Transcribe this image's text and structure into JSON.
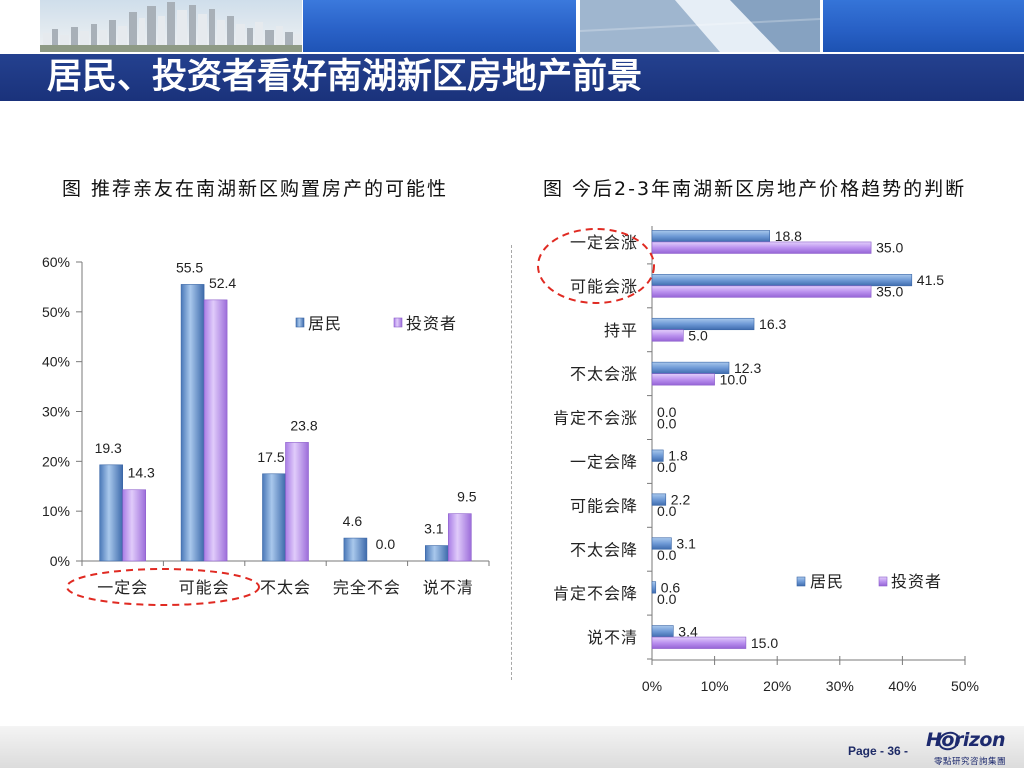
{
  "slide": {
    "title": "居民、投资者看好南湖新区房地产前景",
    "page_label": "Page - 36 -",
    "logo_text": "Horizon",
    "logo_subtext": "零點研究咨詢集團"
  },
  "colors": {
    "title_bar": "#1d3783",
    "resident": "#5b8bcd",
    "resident_edge": "#3a66a6",
    "investor": "#b48ae8",
    "investor_edge": "#8d5fcb",
    "highlight": "#e02a22"
  },
  "chart_data": [
    {
      "type": "bar",
      "orientation": "vertical",
      "title": "图 推荐亲友在南湖新区购置房产的可能性",
      "categories": [
        "一定会",
        "可能会",
        "不太会",
        "完全不会",
        "说不清"
      ],
      "series": [
        {
          "name": "居民",
          "values": [
            19.3,
            55.5,
            17.5,
            4.6,
            3.1
          ]
        },
        {
          "name": "投资者",
          "values": [
            14.3,
            52.4,
            23.8,
            0.0,
            9.5
          ]
        }
      ],
      "y_ticks": [
        "0%",
        "10%",
        "20%",
        "30%",
        "40%",
        "50%",
        "60%"
      ],
      "ylim": [
        0,
        60
      ],
      "grid": false,
      "legend": "top-right"
    },
    {
      "type": "bar",
      "orientation": "horizontal",
      "title": "图 今后2-3年南湖新区房地产价格趋势的判断",
      "categories": [
        "一定会涨",
        "可能会涨",
        "持平",
        "不太会涨",
        "肯定不会涨",
        "一定会降",
        "可能会降",
        "不太会降",
        "肯定不会降",
        "说不清"
      ],
      "series": [
        {
          "name": "居民",
          "values": [
            18.8,
            41.5,
            16.3,
            12.3,
            0.0,
            1.8,
            2.2,
            3.1,
            0.6,
            3.4
          ]
        },
        {
          "name": "投资者",
          "values": [
            35.0,
            35.0,
            5.0,
            10.0,
            0.0,
            0.0,
            0.0,
            0.0,
            0.0,
            15.0
          ]
        }
      ],
      "x_ticks": [
        "0%",
        "10%",
        "20%",
        "30%",
        "40%",
        "50%"
      ],
      "xlim": [
        0,
        50
      ],
      "grid": false,
      "legend": "bottom-right"
    }
  ]
}
